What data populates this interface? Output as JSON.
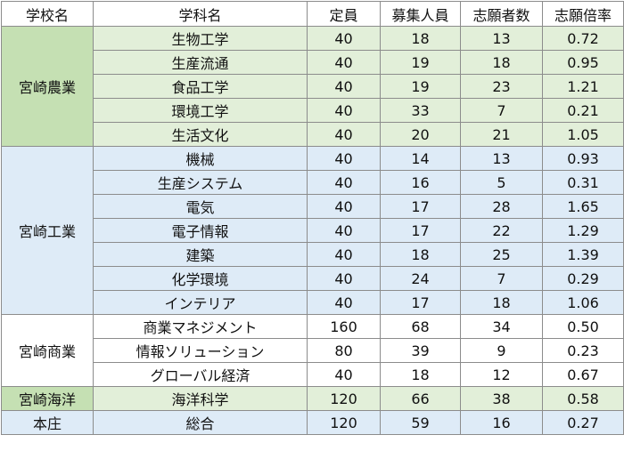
{
  "table": {
    "headers": [
      "学校名",
      "学科名",
      "定員",
      "募集人員",
      "志願者数",
      "志願倍率"
    ],
    "groups": [
      {
        "school": "宮崎農業",
        "color": "#e2efd9",
        "rows": [
          {
            "dept": "生物工学",
            "capacity": "40",
            "recruit": "18",
            "applicants": "13",
            "ratio": "0.72"
          },
          {
            "dept": "生産流通",
            "capacity": "40",
            "recruit": "19",
            "applicants": "18",
            "ratio": "0.95"
          },
          {
            "dept": "食品工学",
            "capacity": "40",
            "recruit": "19",
            "applicants": "23",
            "ratio": "1.21"
          },
          {
            "dept": "環境工学",
            "capacity": "40",
            "recruit": "33",
            "applicants": "7",
            "ratio": "0.21"
          },
          {
            "dept": "生活文化",
            "capacity": "40",
            "recruit": "20",
            "applicants": "21",
            "ratio": "1.05"
          }
        ]
      },
      {
        "school": "宮崎工業",
        "color": "#deebf7",
        "rows": [
          {
            "dept": "機械",
            "capacity": "40",
            "recruit": "14",
            "applicants": "13",
            "ratio": "0.93"
          },
          {
            "dept": "生産システム",
            "capacity": "40",
            "recruit": "16",
            "applicants": "5",
            "ratio": "0.31"
          },
          {
            "dept": "電気",
            "capacity": "40",
            "recruit": "17",
            "applicants": "28",
            "ratio": "1.65"
          },
          {
            "dept": "電子情報",
            "capacity": "40",
            "recruit": "17",
            "applicants": "22",
            "ratio": "1.29"
          },
          {
            "dept": "建築",
            "capacity": "40",
            "recruit": "18",
            "applicants": "25",
            "ratio": "1.39"
          },
          {
            "dept": "化学環境",
            "capacity": "40",
            "recruit": "24",
            "applicants": "7",
            "ratio": "0.29"
          },
          {
            "dept": "インテリア",
            "capacity": "40",
            "recruit": "17",
            "applicants": "18",
            "ratio": "1.06"
          }
        ]
      },
      {
        "school": "宮崎商業",
        "color": "#ffffff",
        "rows": [
          {
            "dept": "商業マネジメント",
            "capacity": "160",
            "recruit": "68",
            "applicants": "34",
            "ratio": "0.50"
          },
          {
            "dept": "情報ソリューション",
            "capacity": "80",
            "recruit": "39",
            "applicants": "9",
            "ratio": "0.23"
          },
          {
            "dept": "グローバル経済",
            "capacity": "40",
            "recruit": "18",
            "applicants": "12",
            "ratio": "0.67"
          }
        ]
      },
      {
        "school": "宮崎海洋",
        "color": "#e2efd9",
        "rows": [
          {
            "dept": "海洋科学",
            "capacity": "120",
            "recruit": "66",
            "applicants": "38",
            "ratio": "0.58"
          }
        ]
      },
      {
        "school": "本庄",
        "color": "#deebf7",
        "rows": [
          {
            "dept": "総合",
            "capacity": "120",
            "recruit": "59",
            "applicants": "16",
            "ratio": "0.27"
          }
        ]
      }
    ]
  }
}
